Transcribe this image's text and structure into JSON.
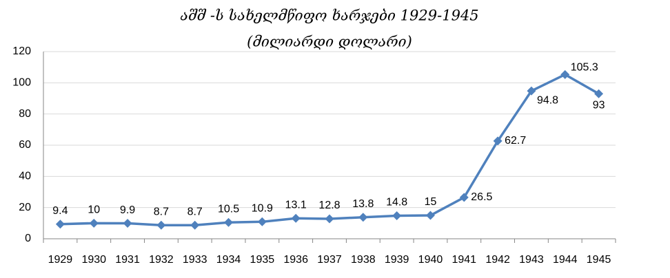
{
  "chart_data": {
    "type": "line",
    "title": "აშშ -ს სახელმწიფო ხარჯები  1929-1945",
    "subtitle": "(მილიარდი დოლარი)",
    "categories": [
      "1929",
      "1930",
      "1931",
      "1932",
      "1933",
      "1934",
      "1935",
      "1936",
      "1937",
      "1938",
      "1939",
      "1940",
      "1941",
      "1942",
      "1943",
      "1944",
      "1945"
    ],
    "values": [
      9.4,
      10,
      9.9,
      8.7,
      8.7,
      10.5,
      10.9,
      13.1,
      12.8,
      13.8,
      14.8,
      15,
      26.5,
      62.7,
      94.8,
      105.3,
      93
    ],
    "color": "#4f81bd",
    "ylim": [
      0,
      120
    ],
    "yticks": [
      0,
      20,
      40,
      60,
      80,
      100,
      120
    ],
    "grid": true
  }
}
